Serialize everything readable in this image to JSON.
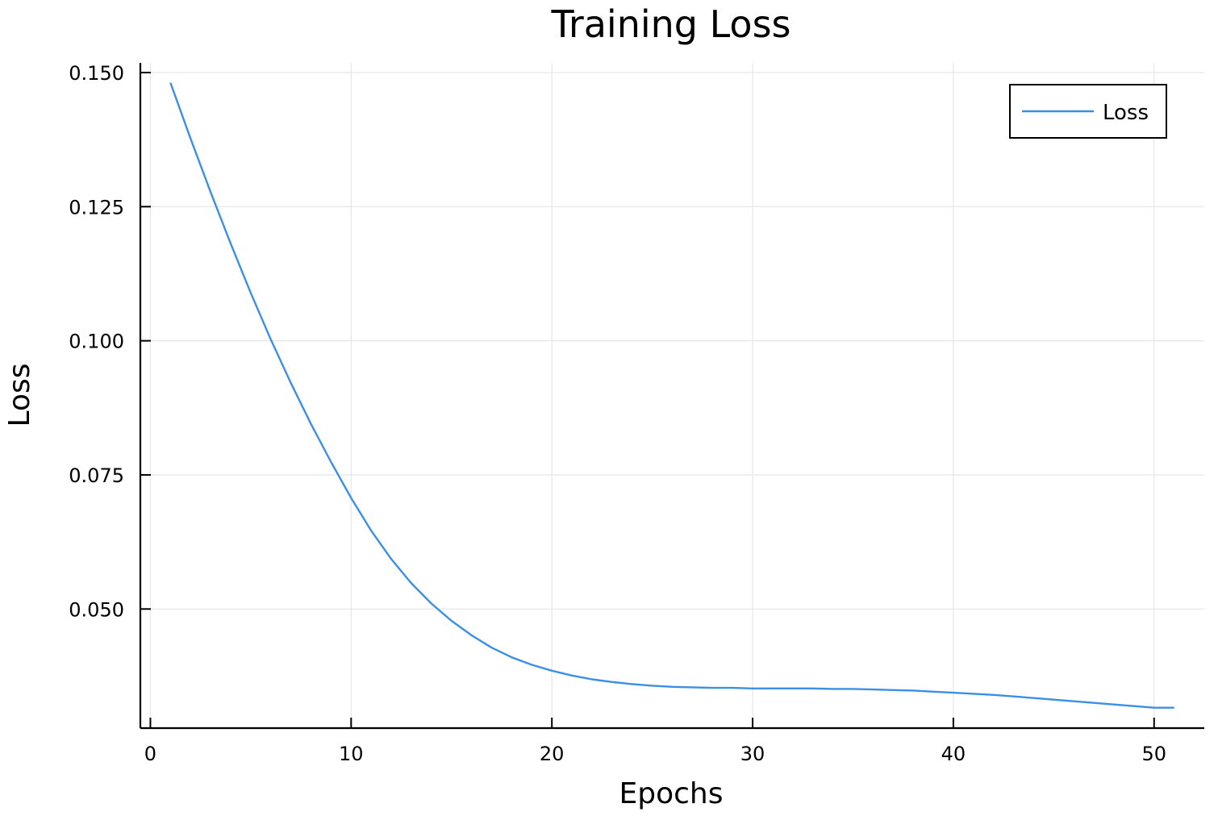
{
  "chart_data": {
    "type": "line",
    "title": "Training Loss",
    "xlabel": "Epochs",
    "ylabel": "Loss",
    "xlim": [
      -0.5,
      52.5
    ],
    "ylim": [
      0.0278,
      0.1518
    ],
    "xticks": [
      0,
      10,
      20,
      30,
      40,
      50
    ],
    "xtick_labels": [
      "0",
      "10",
      "20",
      "30",
      "40",
      "50"
    ],
    "yticks": [
      0.05,
      0.075,
      0.1,
      0.125,
      0.15
    ],
    "ytick_labels": [
      "0.050",
      "0.075",
      "0.100",
      "0.125",
      "0.150"
    ],
    "grid": true,
    "legend_position": "top-right",
    "series": [
      {
        "name": "Loss",
        "color": "#3b8fe4",
        "x": [
          1,
          2,
          3,
          4,
          5,
          6,
          7,
          8,
          9,
          10,
          11,
          12,
          13,
          14,
          15,
          16,
          17,
          18,
          19,
          20,
          21,
          22,
          23,
          24,
          25,
          26,
          27,
          28,
          29,
          30,
          31,
          32,
          33,
          34,
          35,
          36,
          37,
          38,
          39,
          40,
          41,
          42,
          43,
          44,
          45,
          46,
          47,
          48,
          49,
          50,
          51
        ],
        "values": [
          0.1481,
          0.1377,
          0.1277,
          0.1181,
          0.1089,
          0.1002,
          0.0921,
          0.0845,
          0.0774,
          0.0707,
          0.0646,
          0.0593,
          0.0548,
          0.051,
          0.0478,
          0.0451,
          0.0428,
          0.041,
          0.0396,
          0.0385,
          0.0376,
          0.0369,
          0.0364,
          0.036,
          0.0357,
          0.0355,
          0.0354,
          0.0353,
          0.0353,
          0.0352,
          0.0352,
          0.0352,
          0.0352,
          0.0351,
          0.0351,
          0.035,
          0.0349,
          0.0348,
          0.0346,
          0.0344,
          0.0342,
          0.034,
          0.0337,
          0.0334,
          0.0331,
          0.0328,
          0.0325,
          0.0322,
          0.0319,
          0.0316,
          0.0316
        ]
      }
    ]
  }
}
